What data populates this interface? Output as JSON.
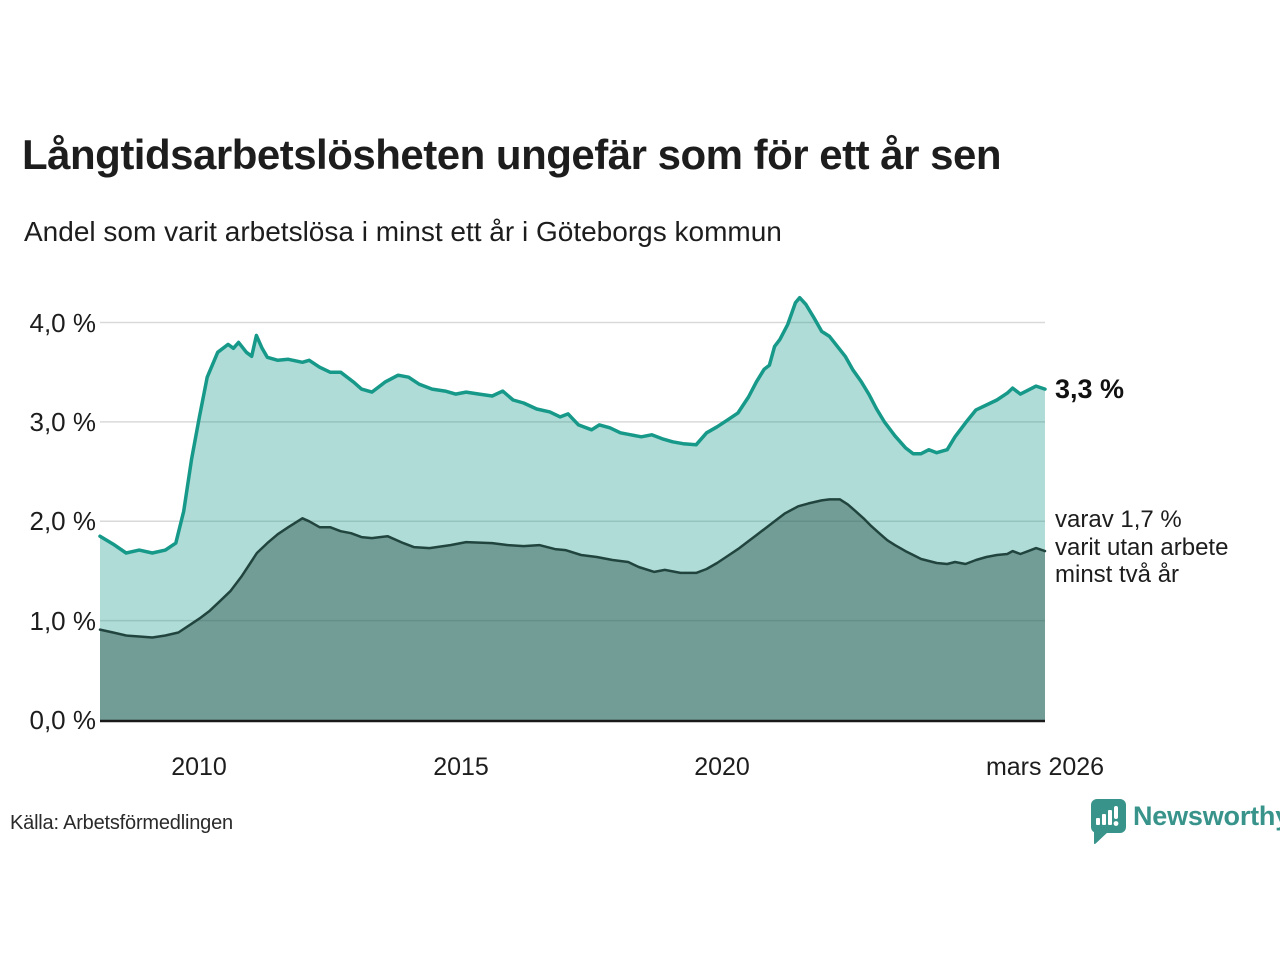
{
  "header": {
    "title": "Långtidsarbetslösheten ungefär som för ett år sen",
    "subtitle": "Andel som varit arbetslösa i minst ett år i Göteborgs kommun"
  },
  "chart_data": {
    "type": "area",
    "title": "Långtidsarbetslösheten ungefär som för ett år sen",
    "subtitle": "Andel som varit arbetslösa i minst ett år i Göteborgs kommun",
    "x_domain": [
      2008.1,
      2026.17
    ],
    "ylim": [
      0,
      4.3
    ],
    "grid": "horizontal",
    "legend_position": "right-annotations",
    "yticks": [
      {
        "label": "4,0 %",
        "value": 4.0
      },
      {
        "label": "3,0 %",
        "value": 3.0
      },
      {
        "label": "2,0 %",
        "value": 2.0
      },
      {
        "label": "1,0 %",
        "value": 1.0
      },
      {
        "label": "0,0 %",
        "value": 0.0
      }
    ],
    "xticks": [
      {
        "label": "2010",
        "value": 2010
      },
      {
        "label": "2015",
        "value": 2015
      },
      {
        "label": "2020",
        "value": 2020
      },
      {
        "label": "mars 2026",
        "value": 2026.17
      }
    ],
    "series": [
      {
        "name": "Andel som varit arbetslösa i minst ett år",
        "color": "#17998a",
        "fill": "rgba(26,156,141,0.35)",
        "line_width": 3.5,
        "last_value_label": "3,3 %",
        "x": [
          2008.1,
          2008.35,
          2008.6,
          2008.85,
          2009.1,
          2009.35,
          2009.55,
          2009.7,
          2009.85,
          2010.0,
          2010.15,
          2010.35,
          2010.55,
          2010.65,
          2010.75,
          2010.9,
          2011.0,
          2011.09,
          2011.2,
          2011.3,
          2011.5,
          2011.7,
          2011.97,
          2012.1,
          2012.3,
          2012.5,
          2012.7,
          2012.95,
          2013.1,
          2013.3,
          2013.55,
          2013.8,
          2014.0,
          2014.2,
          2014.45,
          2014.7,
          2014.9,
          2015.1,
          2015.35,
          2015.6,
          2015.8,
          2016.0,
          2016.2,
          2016.45,
          2016.7,
          2016.9,
          2017.05,
          2017.25,
          2017.5,
          2017.65,
          2017.85,
          2018.05,
          2018.25,
          2018.45,
          2018.65,
          2018.85,
          2019.05,
          2019.25,
          2019.5,
          2019.7,
          2019.9,
          2020.1,
          2020.3,
          2020.5,
          2020.65,
          2020.8,
          2020.9,
          2021.0,
          2021.1,
          2021.25,
          2021.4,
          2021.48,
          2021.6,
          2021.75,
          2021.9,
          2022.05,
          2022.2,
          2022.35,
          2022.5,
          2022.65,
          2022.8,
          2022.95,
          2023.1,
          2023.3,
          2023.5,
          2023.65,
          2023.8,
          2023.95,
          2024.1,
          2024.3,
          2024.45,
          2024.65,
          2024.85,
          2025.05,
          2025.25,
          2025.45,
          2025.55,
          2025.7,
          2025.85,
          2026.0,
          2026.17
        ],
        "values": [
          1.85,
          1.77,
          1.68,
          1.71,
          1.68,
          1.71,
          1.78,
          2.1,
          2.62,
          3.05,
          3.45,
          3.7,
          3.78,
          3.74,
          3.8,
          3.7,
          3.66,
          3.87,
          3.74,
          3.65,
          3.62,
          3.63,
          3.6,
          3.62,
          3.55,
          3.5,
          3.5,
          3.4,
          3.33,
          3.3,
          3.4,
          3.47,
          3.45,
          3.38,
          3.33,
          3.31,
          3.28,
          3.3,
          3.28,
          3.26,
          3.31,
          3.22,
          3.19,
          3.13,
          3.1,
          3.05,
          3.08,
          2.97,
          2.92,
          2.97,
          2.94,
          2.89,
          2.87,
          2.85,
          2.87,
          2.83,
          2.8,
          2.78,
          2.77,
          2.89,
          2.95,
          3.02,
          3.09,
          3.25,
          3.4,
          3.53,
          3.57,
          3.76,
          3.83,
          3.98,
          4.2,
          4.25,
          4.18,
          4.05,
          3.91,
          3.86,
          3.76,
          3.66,
          3.52,
          3.41,
          3.28,
          3.13,
          3.0,
          2.86,
          2.74,
          2.68,
          2.68,
          2.72,
          2.69,
          2.72,
          2.85,
          2.99,
          3.12,
          3.17,
          3.22,
          3.29,
          3.34,
          3.28,
          3.32,
          3.36,
          3.33
        ]
      },
      {
        "name": "Varav utan arbete minst två år",
        "color": "#21453e",
        "fill": "rgba(30,70,63,0.42)",
        "line_width": 2.5,
        "last_value_label": "1,7 %",
        "x": [
          2008.1,
          2008.35,
          2008.6,
          2008.85,
          2009.1,
          2009.35,
          2009.6,
          2009.8,
          2010.0,
          2010.2,
          2010.4,
          2010.6,
          2010.8,
          2011.0,
          2011.1,
          2011.3,
          2011.5,
          2011.7,
          2011.97,
          2012.1,
          2012.3,
          2012.5,
          2012.7,
          2012.9,
          2013.1,
          2013.3,
          2013.6,
          2013.9,
          2014.1,
          2014.4,
          2014.8,
          2015.1,
          2015.6,
          2015.9,
          2016.2,
          2016.5,
          2016.8,
          2017.0,
          2017.3,
          2017.6,
          2017.9,
          2018.2,
          2018.4,
          2018.7,
          2018.9,
          2019.2,
          2019.5,
          2019.7,
          2019.9,
          2020.1,
          2020.3,
          2020.5,
          2020.65,
          2020.8,
          2021.0,
          2021.2,
          2021.45,
          2021.65,
          2021.9,
          2022.05,
          2022.25,
          2022.4,
          2022.55,
          2022.7,
          2022.85,
          2023.0,
          2023.15,
          2023.3,
          2023.5,
          2023.65,
          2023.8,
          2023.95,
          2024.1,
          2024.3,
          2024.45,
          2024.65,
          2024.85,
          2025.05,
          2025.25,
          2025.45,
          2025.55,
          2025.7,
          2025.85,
          2026.0,
          2026.17
        ],
        "values": [
          0.91,
          0.88,
          0.85,
          0.84,
          0.83,
          0.85,
          0.88,
          0.95,
          1.02,
          1.1,
          1.2,
          1.3,
          1.44,
          1.6,
          1.68,
          1.78,
          1.87,
          1.94,
          2.03,
          2.0,
          1.94,
          1.94,
          1.9,
          1.88,
          1.84,
          1.83,
          1.85,
          1.78,
          1.74,
          1.73,
          1.76,
          1.79,
          1.78,
          1.76,
          1.75,
          1.76,
          1.72,
          1.71,
          1.66,
          1.64,
          1.61,
          1.59,
          1.54,
          1.49,
          1.51,
          1.48,
          1.48,
          1.52,
          1.58,
          1.65,
          1.72,
          1.8,
          1.86,
          1.92,
          2.0,
          2.08,
          2.15,
          2.18,
          2.21,
          2.22,
          2.22,
          2.17,
          2.1,
          2.03,
          1.95,
          1.88,
          1.81,
          1.76,
          1.7,
          1.66,
          1.62,
          1.6,
          1.58,
          1.57,
          1.59,
          1.57,
          1.61,
          1.64,
          1.66,
          1.67,
          1.7,
          1.67,
          1.7,
          1.73,
          1.7
        ]
      }
    ],
    "annotations": {
      "total": "3,3 %",
      "two_year": "varav 1,7 %\nvarit utan arbete\nminst två år"
    }
  },
  "footer": {
    "source": "Källa: Arbetsförmedlingen",
    "brand": "Newsworthy"
  },
  "colors": {
    "accent": "#17998a",
    "area_light": "rgba(26,156,141,0.35)",
    "area_dark": "rgba(30,70,63,0.42)",
    "dark_line": "#21453e",
    "brand": "#38948b",
    "grid": "#d9d9d9",
    "axis": "#1a1a1a",
    "text": "#1d1d1d"
  }
}
